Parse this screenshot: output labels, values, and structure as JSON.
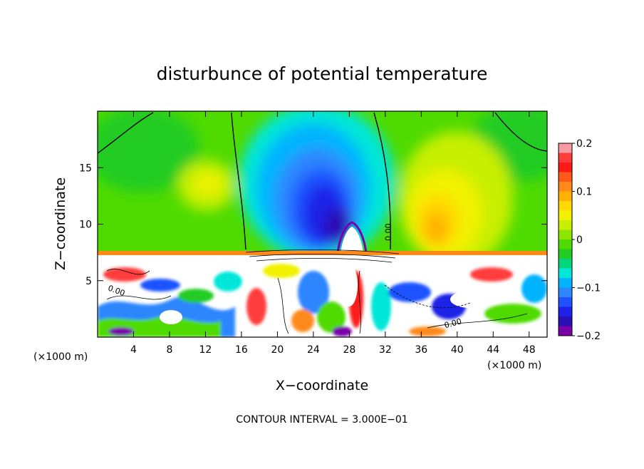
{
  "chart_data": {
    "type": "heatmap",
    "title": "disturbunce of potential temperature",
    "xlabel": "X−coordinate",
    "ylabel": "Z−coordinate",
    "x_unit_left": "(×1000 m)",
    "x_unit_right": "(×1000 m)",
    "footer": "CONTOUR INTERVAL = 3.000E−01",
    "xlim": [
      0,
      50
    ],
    "ylim": [
      0,
      20
    ],
    "x_ticks": [
      4,
      8,
      12,
      16,
      20,
      24,
      28,
      32,
      36,
      40,
      44,
      48
    ],
    "x_tick_labels": [
      "4",
      "8",
      "12",
      "16",
      "20",
      "24",
      "28",
      "32",
      "36",
      "40",
      "44",
      "48"
    ],
    "y_ticks": [
      5,
      10,
      15
    ],
    "y_tick_labels": [
      "5",
      "10",
      "15"
    ],
    "contour_labels": [
      {
        "text": "0.00",
        "x": 32.6,
        "z": 9.3,
        "rotate": -90
      },
      {
        "text": "0.00",
        "x": 2.0,
        "z": 3.9,
        "rotate": 20
      },
      {
        "text": "0.00",
        "x": 39.6,
        "z": 1.0,
        "rotate": -15
      }
    ],
    "colorbar": {
      "min": -0.2,
      "max": 0.2,
      "ticks": [
        0.2,
        0.1,
        0,
        -0.1,
        -0.2
      ],
      "tick_labels": [
        "0.2",
        "0.1",
        "0",
        "−0.1",
        "−0.2"
      ],
      "colors": [
        "#f79aa4",
        "#ff3c3c",
        "#ff1a1a",
        "#ff5a1a",
        "#ff8a1a",
        "#ffb000",
        "#ffd800",
        "#f2f200",
        "#c8ef00",
        "#8ee600",
        "#4fdb00",
        "#23cc23",
        "#00d77c",
        "#00e6d8",
        "#00b3ff",
        "#2e86ff",
        "#1f52ff",
        "#1f22e6",
        "#2a0fb4",
        "#7a00aa"
      ]
    }
  }
}
